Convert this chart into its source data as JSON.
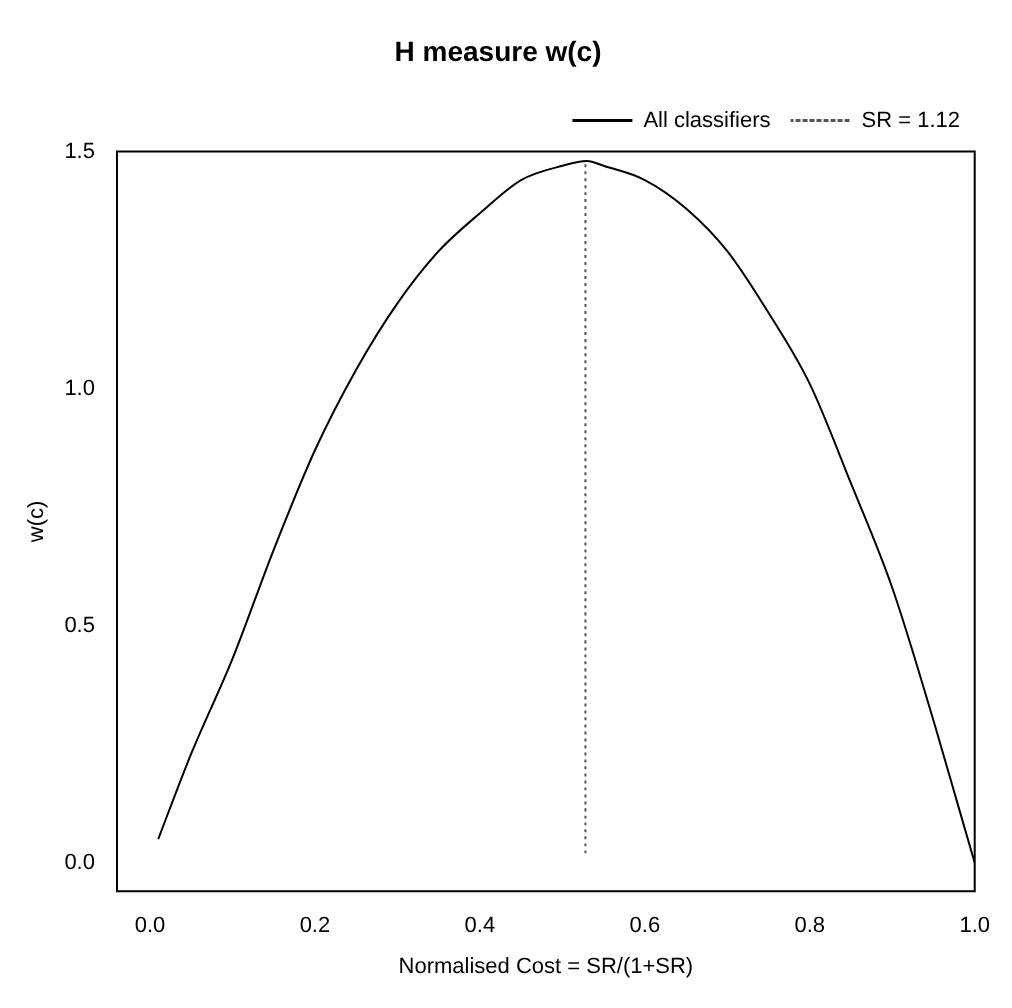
{
  "chart_data": {
    "type": "line",
    "title": "H measure w(c)",
    "xlabel": "Normalised Cost = SR/(1+SR)",
    "ylabel": "w(c)",
    "xlim": [
      -0.04,
      1.0
    ],
    "ylim": [
      -0.06,
      1.5
    ],
    "xticks": [
      {
        "value": 0,
        "label": "0.0"
      },
      {
        "value": 0.2,
        "label": "0.2"
      },
      {
        "value": 0.4,
        "label": "0.4"
      },
      {
        "value": 0.6,
        "label": "0.6"
      },
      {
        "value": 0.8,
        "label": "0.8"
      },
      {
        "value": 1,
        "label": "1.0"
      }
    ],
    "yticks": [
      {
        "value": 0,
        "label": "0.0"
      },
      {
        "value": 0.5,
        "label": "0.5"
      },
      {
        "value": 1,
        "label": "1.0"
      },
      {
        "value": 1.5,
        "label": "1.5"
      }
    ],
    "grid": false,
    "legend": "top right",
    "series": [
      {
        "name": "All classifiers",
        "color": "#000000",
        "line_style": "solid",
        "x": [
          0.01,
          0.05,
          0.1,
          0.15,
          0.2,
          0.25,
          0.3,
          0.35,
          0.4,
          0.45,
          0.5,
          0.53,
          0.55,
          0.6,
          0.65,
          0.7,
          0.75,
          0.8,
          0.85,
          0.9,
          0.95,
          0.98,
          1.0
        ],
        "values": [
          0.05,
          0.23,
          0.43,
          0.66,
          0.87,
          1.04,
          1.18,
          1.29,
          1.37,
          1.44,
          1.47,
          1.48,
          1.47,
          1.44,
          1.38,
          1.29,
          1.16,
          1.01,
          0.8,
          0.58,
          0.3,
          0.12,
          0.0
        ]
      },
      {
        "name": "SR = 1.12",
        "color": "#555555",
        "line_style": "dotted",
        "x": [
          0.528,
          0.528
        ],
        "values": [
          0.02,
          1.48
        ]
      }
    ]
  }
}
